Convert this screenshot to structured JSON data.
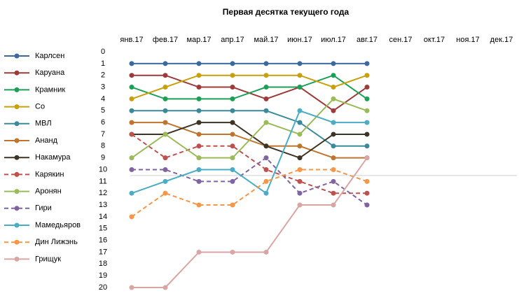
{
  "chart_data": {
    "type": "line",
    "title": "Первая десятка текущего года",
    "categories": [
      "янв.17",
      "фев.17",
      "мар.17",
      "апр.17",
      "май.17",
      "июн.17",
      "июл.17",
      "авг.17",
      "сен.17",
      "окт.17",
      "ноя.17",
      "дек.17"
    ],
    "ylim": [
      0,
      20
    ],
    "yticks": [
      0,
      1,
      2,
      3,
      4,
      5,
      6,
      7,
      8,
      9,
      10,
      11,
      12,
      13,
      14,
      15,
      16,
      17,
      18,
      19,
      20
    ],
    "y_inverted": true,
    "reference_line": 10.5,
    "series": [
      {
        "name": "Карлсен",
        "color": "#3d6a9e",
        "dashed": false,
        "values": [
          1,
          1,
          1,
          1,
          1,
          1,
          1,
          1,
          null,
          null,
          null,
          null
        ]
      },
      {
        "name": "Каруана",
        "color": "#9e3b3a",
        "dashed": false,
        "values": [
          2,
          2,
          3,
          3,
          4,
          3,
          5,
          3,
          null,
          null,
          null,
          null
        ]
      },
      {
        "name": "Крамник",
        "color": "#1aa155",
        "dashed": false,
        "values": [
          3,
          4,
          4,
          4,
          3,
          3,
          2,
          4,
          null,
          null,
          null,
          null
        ]
      },
      {
        "name": "Со",
        "color": "#c9a00c",
        "dashed": false,
        "values": [
          4,
          3,
          2,
          2,
          2,
          2,
          3,
          2,
          null,
          null,
          null,
          null
        ]
      },
      {
        "name": "МВЛ",
        "color": "#3b8a9c",
        "dashed": false,
        "values": [
          5,
          5,
          5,
          5,
          5,
          6,
          8,
          8,
          null,
          null,
          null,
          null
        ]
      },
      {
        "name": "Ананд",
        "color": "#c0752f",
        "dashed": false,
        "values": [
          6,
          6,
          7,
          7,
          8,
          8,
          9,
          9,
          null,
          null,
          null,
          null
        ]
      },
      {
        "name": "Накамура",
        "color": "#3d3425",
        "dashed": false,
        "values": [
          7,
          7,
          6,
          6,
          8,
          9,
          7,
          7,
          null,
          null,
          null,
          null
        ]
      },
      {
        "name": "Карякин",
        "color": "#c0504d",
        "dashed": true,
        "values": [
          7,
          9,
          8,
          8,
          10,
          11,
          12,
          12,
          null,
          null,
          null,
          null
        ]
      },
      {
        "name": "Аронян",
        "color": "#9bbb59",
        "dashed": false,
        "values": [
          9,
          7,
          9,
          9,
          6,
          7,
          4,
          5,
          null,
          null,
          null,
          null
        ]
      },
      {
        "name": "Гири",
        "color": "#8064a2",
        "dashed": true,
        "values": [
          10,
          10,
          11,
          11,
          9,
          12,
          11,
          13,
          null,
          null,
          null,
          null
        ]
      },
      {
        "name": "Мамедьяров",
        "color": "#4bacc6",
        "dashed": false,
        "values": [
          12,
          11,
          10,
          10,
          12,
          5,
          6,
          6,
          null,
          null,
          null,
          null
        ]
      },
      {
        "name": "Дин Лижэнь",
        "color": "#f79646",
        "dashed": true,
        "values": [
          14,
          12,
          13,
          13,
          11,
          10,
          10,
          11,
          null,
          null,
          null,
          null
        ]
      },
      {
        "name": "Грищук",
        "color": "#d9a6a4",
        "dashed": false,
        "values": [
          20,
          20,
          17,
          17,
          17,
          13,
          13,
          9,
          null,
          null,
          null,
          null
        ]
      }
    ]
  }
}
